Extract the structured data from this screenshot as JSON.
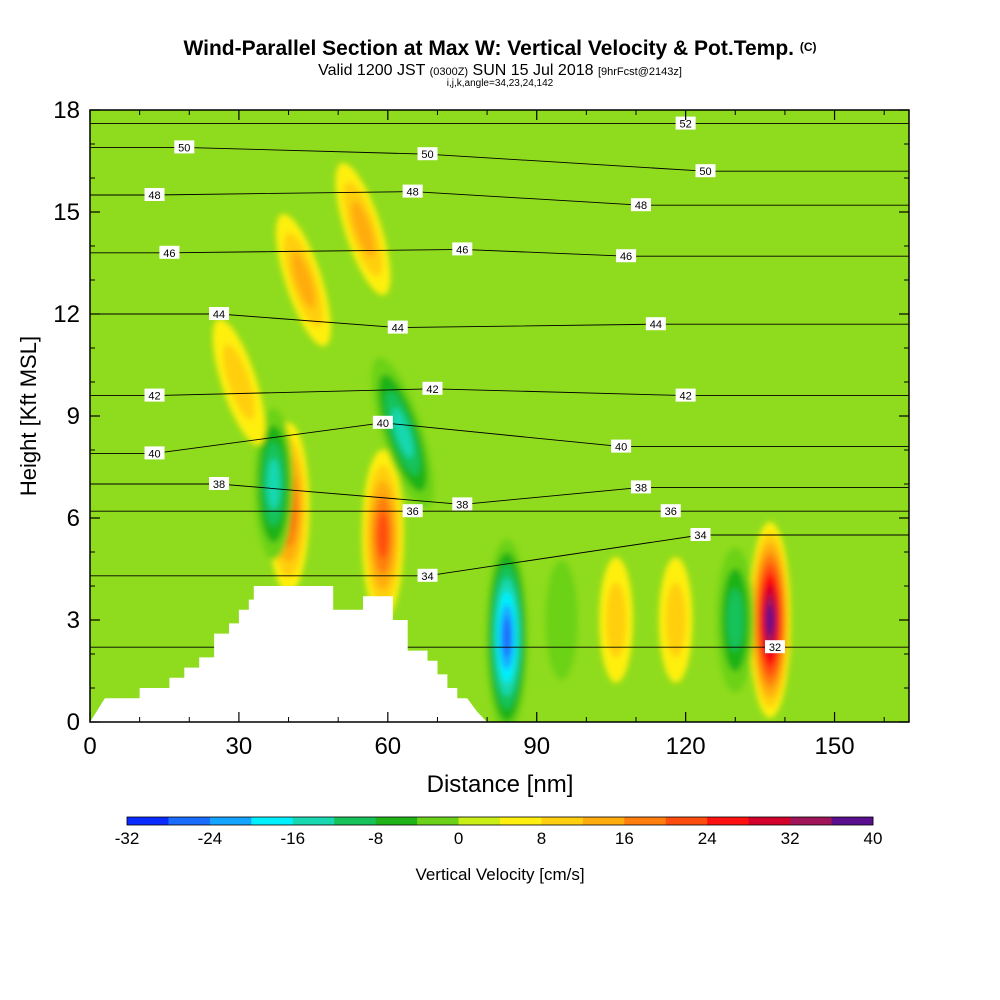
{
  "title": {
    "main": "Wind-Parallel Section at Max W: Vertical Velocity & Pot.Temp.",
    "corner_mark": "(C)",
    "valid_prefix": "Valid 1200 JST",
    "valid_utc": "(0300Z)",
    "valid_date": "SUN 15 Jul 2018",
    "forecast": "[9hrFcst@2143z]",
    "section_params": "i,j,k,angle=34,23,24,142"
  },
  "chart_data": {
    "type": "heatmap",
    "xlabel": "Distance [nm]",
    "ylabel": "Height [Kft MSL]",
    "xlim": [
      0,
      165
    ],
    "ylim": [
      0,
      18
    ],
    "xticks": [
      0,
      30,
      60,
      90,
      120,
      150
    ],
    "yticks": [
      0,
      3,
      6,
      9,
      12,
      15,
      18
    ],
    "colorbar": {
      "label": "Vertical Velocity [cm/s]",
      "min": -32,
      "max": 40,
      "step": 4,
      "tick_values": [
        -32,
        -24,
        -16,
        -8,
        0,
        8,
        16,
        24,
        32,
        40
      ],
      "colors": [
        "#0a2bff",
        "#1a6cff",
        "#12a4ff",
        "#00f0ff",
        "#17d8b0",
        "#17c25a",
        "#1fb318",
        "#6cd219",
        "#c9ef16",
        "#ffef10",
        "#ffcf10",
        "#ffac0f",
        "#ff7e0e",
        "#ff4d0f",
        "#ff1010",
        "#d4002c",
        "#a0145a",
        "#5a0e8e"
      ]
    },
    "vertical_velocity_features": [
      {
        "x": 40,
        "y": 6.3,
        "w_peak": 22
      },
      {
        "x": 59,
        "y": 5.5,
        "w_peak": 22
      },
      {
        "x": 43,
        "y": 13.0,
        "w_peak": 12
      },
      {
        "x": 55,
        "y": 14.5,
        "w_peak": 12
      },
      {
        "x": 63,
        "y": 8.5,
        "w_peak": -18
      },
      {
        "x": 37,
        "y": 7.0,
        "w_peak": -16
      },
      {
        "x": 84,
        "y": 2.5,
        "w_peak": -30
      },
      {
        "x": 95,
        "y": 3.0,
        "w_peak": -6
      },
      {
        "x": 137,
        "y": 3.0,
        "w_peak": 38
      },
      {
        "x": 130,
        "y": 3.0,
        "w_peak": -14
      },
      {
        "x": 30,
        "y": 10.0,
        "w_peak": 10
      },
      {
        "x": 106,
        "y": 3.0,
        "w_peak": 8
      },
      {
        "x": 118,
        "y": 3.0,
        "w_peak": 8
      }
    ],
    "theta_contour_labels": [
      {
        "value": "52",
        "x": 120,
        "y": 17.6
      },
      {
        "value": "50",
        "x": 19,
        "y": 16.9
      },
      {
        "value": "50",
        "x": 68,
        "y": 16.7
      },
      {
        "value": "50",
        "x": 124,
        "y": 16.2
      },
      {
        "value": "48",
        "x": 13,
        "y": 15.5
      },
      {
        "value": "48",
        "x": 65,
        "y": 15.6
      },
      {
        "value": "48",
        "x": 111,
        "y": 15.2
      },
      {
        "value": "46",
        "x": 16,
        "y": 13.8
      },
      {
        "value": "46",
        "x": 75,
        "y": 13.9
      },
      {
        "value": "46",
        "x": 108,
        "y": 13.7
      },
      {
        "value": "44",
        "x": 26,
        "y": 12.0
      },
      {
        "value": "44",
        "x": 62,
        "y": 11.6
      },
      {
        "value": "44",
        "x": 114,
        "y": 11.7
      },
      {
        "value": "42",
        "x": 13,
        "y": 9.6
      },
      {
        "value": "42",
        "x": 69,
        "y": 9.8
      },
      {
        "value": "42",
        "x": 120,
        "y": 9.6
      },
      {
        "value": "40",
        "x": 13,
        "y": 7.9
      },
      {
        "value": "40",
        "x": 59,
        "y": 8.8
      },
      {
        "value": "40",
        "x": 107,
        "y": 8.1
      },
      {
        "value": "38",
        "x": 26,
        "y": 7.0
      },
      {
        "value": "38",
        "x": 75,
        "y": 6.4
      },
      {
        "value": "38",
        "x": 111,
        "y": 6.9
      },
      {
        "value": "36",
        "x": 65,
        "y": 6.2
      },
      {
        "value": "36",
        "x": 117,
        "y": 6.2
      },
      {
        "value": "34",
        "x": 68,
        "y": 4.3
      },
      {
        "value": "34",
        "x": 123,
        "y": 5.5
      },
      {
        "value": "32",
        "x": 138,
        "y": 2.2
      }
    ],
    "terrain_profile": [
      [
        0,
        0
      ],
      [
        3,
        0.7
      ],
      [
        10,
        0.7
      ],
      [
        10,
        1.0
      ],
      [
        16,
        1.0
      ],
      [
        16,
        1.3
      ],
      [
        19,
        1.3
      ],
      [
        19,
        1.6
      ],
      [
        22,
        1.6
      ],
      [
        22,
        1.9
      ],
      [
        25,
        1.9
      ],
      [
        25,
        2.6
      ],
      [
        28,
        2.6
      ],
      [
        28,
        2.9
      ],
      [
        30,
        2.9
      ],
      [
        30,
        3.3
      ],
      [
        32,
        3.3
      ],
      [
        32,
        3.6
      ],
      [
        33,
        3.6
      ],
      [
        33,
        4.0
      ],
      [
        49,
        4.0
      ],
      [
        49,
        3.3
      ],
      [
        55,
        3.3
      ],
      [
        55,
        3.7
      ],
      [
        61,
        3.7
      ],
      [
        61,
        3.0
      ],
      [
        64,
        3.0
      ],
      [
        64,
        2.1
      ],
      [
        68,
        2.1
      ],
      [
        68,
        1.8
      ],
      [
        70,
        1.8
      ],
      [
        70,
        1.4
      ],
      [
        72,
        1.4
      ],
      [
        72,
        1.0
      ],
      [
        74,
        1.0
      ],
      [
        74,
        0.7
      ],
      [
        76,
        0.7
      ],
      [
        78,
        0.3
      ],
      [
        80,
        0
      ]
    ]
  }
}
